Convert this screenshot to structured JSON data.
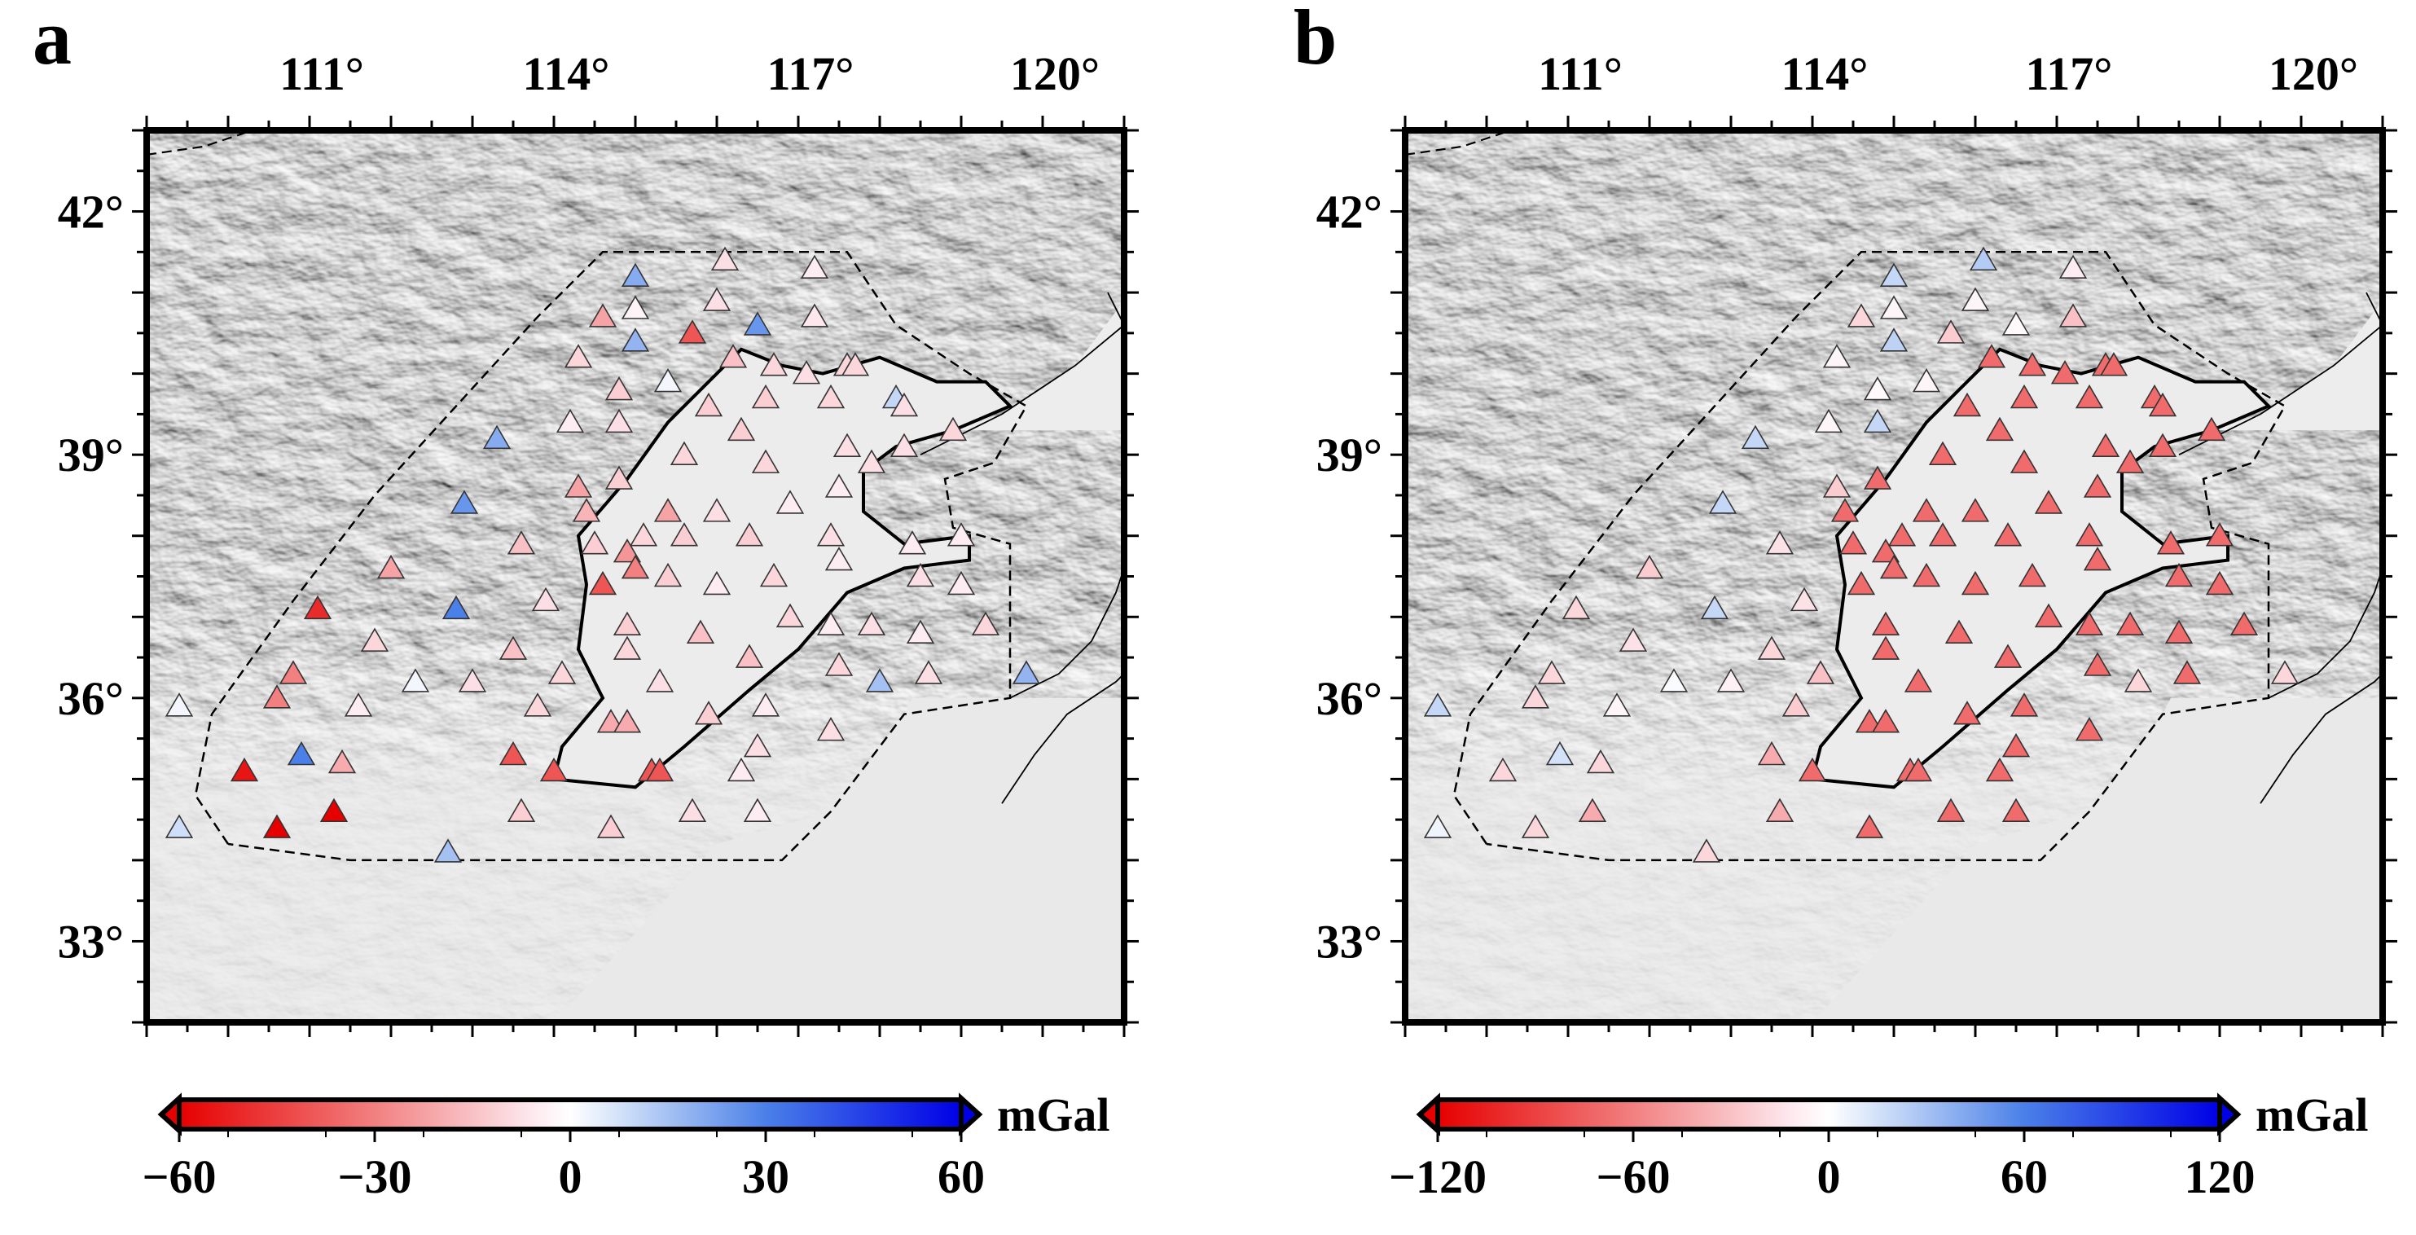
{
  "panels": [
    {
      "letter": "a",
      "lon_ticks": [
        "111°",
        "114°",
        "117°",
        "120°"
      ],
      "lat_ticks": [
        "42°",
        "39°",
        "36°",
        "33°"
      ],
      "colorbar": {
        "ticks": [
          "−60",
          "−30",
          "0",
          "30",
          "60"
        ],
        "unit": "mGal",
        "range": [
          -60,
          60
        ]
      },
      "stations_value_scheme": "mixed"
    },
    {
      "letter": "b",
      "lon_ticks": [
        "111°",
        "114°",
        "117°",
        "120°"
      ],
      "lat_ticks": [
        "42°",
        "39°",
        "36°",
        "33°"
      ],
      "colorbar": {
        "ticks": [
          "−120",
          "−60",
          "0",
          "60",
          "120"
        ],
        "unit": "mGal",
        "range": [
          -120,
          120
        ]
      },
      "stations_value_scheme": "plain-red"
    }
  ],
  "map_extent": {
    "lon": [
      109,
      121
    ],
    "lat": [
      32,
      43
    ]
  },
  "stations": [
    {
      "lon": 115.0,
      "lat": 41.2,
      "a": 20,
      "b": 20
    },
    {
      "lon": 116.1,
      "lat": 41.4,
      "a": -8,
      "b": 25
    },
    {
      "lon": 117.2,
      "lat": 41.3,
      "a": -5,
      "b": -10
    },
    {
      "lon": 114.6,
      "lat": 40.7,
      "a": -22,
      "b": -20
    },
    {
      "lon": 115.0,
      "lat": 40.8,
      "a": -3,
      "b": -5
    },
    {
      "lon": 115.7,
      "lat": 40.5,
      "a": -40,
      "b": -25
    },
    {
      "lon": 116.0,
      "lat": 40.9,
      "a": -8,
      "b": -5
    },
    {
      "lon": 116.5,
      "lat": 40.6,
      "a": 25,
      "b": -3
    },
    {
      "lon": 117.2,
      "lat": 40.7,
      "a": -6,
      "b": -30
    },
    {
      "lon": 114.3,
      "lat": 40.2,
      "a": -10,
      "b": -5
    },
    {
      "lon": 115.0,
      "lat": 40.4,
      "a": 18,
      "b": 22
    },
    {
      "lon": 115.4,
      "lat": 39.9,
      "a": 2,
      "b": -5
    },
    {
      "lon": 114.8,
      "lat": 39.8,
      "a": -12,
      "b": -3
    },
    {
      "lon": 116.2,
      "lat": 40.2,
      "a": -15,
      "b": -70
    },
    {
      "lon": 116.7,
      "lat": 40.1,
      "a": -10,
      "b": -70
    },
    {
      "lon": 117.1,
      "lat": 40.0,
      "a": -8,
      "b": -70
    },
    {
      "lon": 117.6,
      "lat": 40.1,
      "a": -10,
      "b": -70
    },
    {
      "lon": 117.7,
      "lat": 40.1,
      "a": -10,
      "b": -70
    },
    {
      "lon": 115.9,
      "lat": 39.6,
      "a": -12,
      "b": -70
    },
    {
      "lon": 116.6,
      "lat": 39.7,
      "a": -12,
      "b": -70
    },
    {
      "lon": 117.4,
      "lat": 39.7,
      "a": -10,
      "b": -70
    },
    {
      "lon": 118.2,
      "lat": 39.7,
      "a": 10,
      "b": -70
    },
    {
      "lon": 118.3,
      "lat": 39.6,
      "a": -8,
      "b": -70
    },
    {
      "lon": 114.2,
      "lat": 39.4,
      "a": -5,
      "b": -5
    },
    {
      "lon": 114.8,
      "lat": 39.4,
      "a": -8,
      "b": 20
    },
    {
      "lon": 113.3,
      "lat": 39.2,
      "a": 20,
      "b": 20
    },
    {
      "lon": 116.3,
      "lat": 39.3,
      "a": -12,
      "b": -70
    },
    {
      "lon": 117.6,
      "lat": 39.1,
      "a": -8,
      "b": -70
    },
    {
      "lon": 118.3,
      "lat": 39.1,
      "a": -8,
      "b": -70
    },
    {
      "lon": 118.9,
      "lat": 39.3,
      "a": -10,
      "b": -70
    },
    {
      "lon": 115.6,
      "lat": 39.0,
      "a": -10,
      "b": -70
    },
    {
      "lon": 116.6,
      "lat": 38.9,
      "a": -10,
      "b": -70
    },
    {
      "lon": 117.9,
      "lat": 38.9,
      "a": -8,
      "b": -70
    },
    {
      "lon": 114.3,
      "lat": 38.6,
      "a": -22,
      "b": -25
    },
    {
      "lon": 114.8,
      "lat": 38.7,
      "a": -12,
      "b": -70
    },
    {
      "lon": 114.4,
      "lat": 38.3,
      "a": -18,
      "b": -70
    },
    {
      "lon": 112.9,
      "lat": 38.4,
      "a": 25,
      "b": 20
    },
    {
      "lon": 115.4,
      "lat": 38.3,
      "a": -22,
      "b": -70
    },
    {
      "lon": 116.0,
      "lat": 38.3,
      "a": -8,
      "b": -70
    },
    {
      "lon": 116.9,
      "lat": 38.4,
      "a": -5,
      "b": -70
    },
    {
      "lon": 117.5,
      "lat": 38.6,
      "a": -5,
      "b": -70
    },
    {
      "lon": 114.5,
      "lat": 37.9,
      "a": -12,
      "b": -70
    },
    {
      "lon": 115.1,
      "lat": 38.0,
      "a": -10,
      "b": -70
    },
    {
      "lon": 115.6,
      "lat": 38.0,
      "a": -12,
      "b": -70
    },
    {
      "lon": 116.4,
      "lat": 38.0,
      "a": -12,
      "b": -70
    },
    {
      "lon": 117.4,
      "lat": 38.0,
      "a": -8,
      "b": -70
    },
    {
      "lon": 118.4,
      "lat": 37.9,
      "a": -5,
      "b": -70
    },
    {
      "lon": 119.0,
      "lat": 38.0,
      "a": -5,
      "b": -70
    },
    {
      "lon": 113.6,
      "lat": 37.9,
      "a": -15,
      "b": -15
    },
    {
      "lon": 112.0,
      "lat": 37.6,
      "a": -22,
      "b": -25
    },
    {
      "lon": 114.9,
      "lat": 37.8,
      "a": -25,
      "b": -70
    },
    {
      "lon": 115.0,
      "lat": 37.6,
      "a": -30,
      "b": -70
    },
    {
      "lon": 115.4,
      "lat": 37.5,
      "a": -12,
      "b": -70
    },
    {
      "lon": 116.0,
      "lat": 37.4,
      "a": -5,
      "b": -70
    },
    {
      "lon": 116.7,
      "lat": 37.5,
      "a": -10,
      "b": -70
    },
    {
      "lon": 117.5,
      "lat": 37.7,
      "a": -5,
      "b": -70
    },
    {
      "lon": 118.5,
      "lat": 37.5,
      "a": -8,
      "b": -70
    },
    {
      "lon": 119.0,
      "lat": 37.4,
      "a": -5,
      "b": -70
    },
    {
      "lon": 114.6,
      "lat": 37.4,
      "a": -40,
      "b": -70
    },
    {
      "lon": 111.1,
      "lat": 37.1,
      "a": -50,
      "b": -20
    },
    {
      "lon": 112.8,
      "lat": 37.1,
      "a": 30,
      "b": 20
    },
    {
      "lon": 113.9,
      "lat": 37.2,
      "a": -8,
      "b": -15
    },
    {
      "lon": 114.9,
      "lat": 36.9,
      "a": -12,
      "b": -70
    },
    {
      "lon": 115.8,
      "lat": 36.8,
      "a": -15,
      "b": -70
    },
    {
      "lon": 116.9,
      "lat": 37.0,
      "a": -10,
      "b": -70
    },
    {
      "lon": 117.4,
      "lat": 36.9,
      "a": -5,
      "b": -70
    },
    {
      "lon": 117.9,
      "lat": 36.9,
      "a": -8,
      "b": -70
    },
    {
      "lon": 118.5,
      "lat": 36.8,
      "a": -5,
      "b": -70
    },
    {
      "lon": 119.3,
      "lat": 36.9,
      "a": -10,
      "b": -70
    },
    {
      "lon": 111.8,
      "lat": 36.7,
      "a": -10,
      "b": -15
    },
    {
      "lon": 113.5,
      "lat": 36.6,
      "a": -15,
      "b": -20
    },
    {
      "lon": 114.9,
      "lat": 36.6,
      "a": -10,
      "b": -70
    },
    {
      "lon": 116.4,
      "lat": 36.5,
      "a": -15,
      "b": -70
    },
    {
      "lon": 117.5,
      "lat": 36.4,
      "a": -10,
      "b": -70
    },
    {
      "lon": 118.6,
      "lat": 36.3,
      "a": -8,
      "b": -70
    },
    {
      "lon": 119.8,
      "lat": 36.3,
      "a": 18,
      "b": -20
    },
    {
      "lon": 110.8,
      "lat": 36.3,
      "a": -30,
      "b": -20
    },
    {
      "lon": 112.3,
      "lat": 36.2,
      "a": 2,
      "b": 2
    },
    {
      "lon": 113.0,
      "lat": 36.2,
      "a": -8,
      "b": -8
    },
    {
      "lon": 114.1,
      "lat": 36.3,
      "a": -10,
      "b": -30
    },
    {
      "lon": 115.3,
      "lat": 36.2,
      "a": -8,
      "b": -70
    },
    {
      "lon": 118.0,
      "lat": 36.2,
      "a": 15,
      "b": -20
    },
    {
      "lon": 110.6,
      "lat": 36.0,
      "a": -30,
      "b": -20
    },
    {
      "lon": 109.4,
      "lat": 35.9,
      "a": 2,
      "b": 20
    },
    {
      "lon": 111.6,
      "lat": 35.9,
      "a": -5,
      "b": -5
    },
    {
      "lon": 113.8,
      "lat": 35.9,
      "a": -10,
      "b": -25
    },
    {
      "lon": 115.9,
      "lat": 35.8,
      "a": -12,
      "b": -70
    },
    {
      "lon": 116.6,
      "lat": 35.9,
      "a": -5,
      "b": -70
    },
    {
      "lon": 117.4,
      "lat": 35.6,
      "a": -8,
      "b": -70
    },
    {
      "lon": 114.7,
      "lat": 35.7,
      "a": -20,
      "b": -70
    },
    {
      "lon": 114.9,
      "lat": 35.7,
      "a": -20,
      "b": -70
    },
    {
      "lon": 113.5,
      "lat": 35.3,
      "a": -40,
      "b": -40
    },
    {
      "lon": 116.5,
      "lat": 35.4,
      "a": -8,
      "b": -70
    },
    {
      "lon": 110.2,
      "lat": 35.1,
      "a": -55,
      "b": -20
    },
    {
      "lon": 110.9,
      "lat": 35.3,
      "a": 30,
      "b": 15
    },
    {
      "lon": 111.4,
      "lat": 35.2,
      "a": -20,
      "b": -20
    },
    {
      "lon": 114.0,
      "lat": 35.1,
      "a": -40,
      "b": -70
    },
    {
      "lon": 115.2,
      "lat": 35.1,
      "a": -40,
      "b": -70
    },
    {
      "lon": 115.3,
      "lat": 35.1,
      "a": -40,
      "b": -70
    },
    {
      "lon": 116.3,
      "lat": 35.1,
      "a": -5,
      "b": -70
    },
    {
      "lon": 113.6,
      "lat": 34.6,
      "a": -12,
      "b": -40
    },
    {
      "lon": 111.3,
      "lat": 34.6,
      "a": -60,
      "b": -40
    },
    {
      "lon": 115.7,
      "lat": 34.6,
      "a": -8,
      "b": -70
    },
    {
      "lon": 116.5,
      "lat": 34.6,
      "a": -5,
      "b": -70
    },
    {
      "lon": 110.6,
      "lat": 34.4,
      "a": -70,
      "b": -20
    },
    {
      "lon": 109.4,
      "lat": 34.4,
      "a": 8,
      "b": 5
    },
    {
      "lon": 114.7,
      "lat": 34.4,
      "a": -12,
      "b": -70
    },
    {
      "lon": 112.7,
      "lat": 34.1,
      "a": 15,
      "b": -20
    }
  ]
}
